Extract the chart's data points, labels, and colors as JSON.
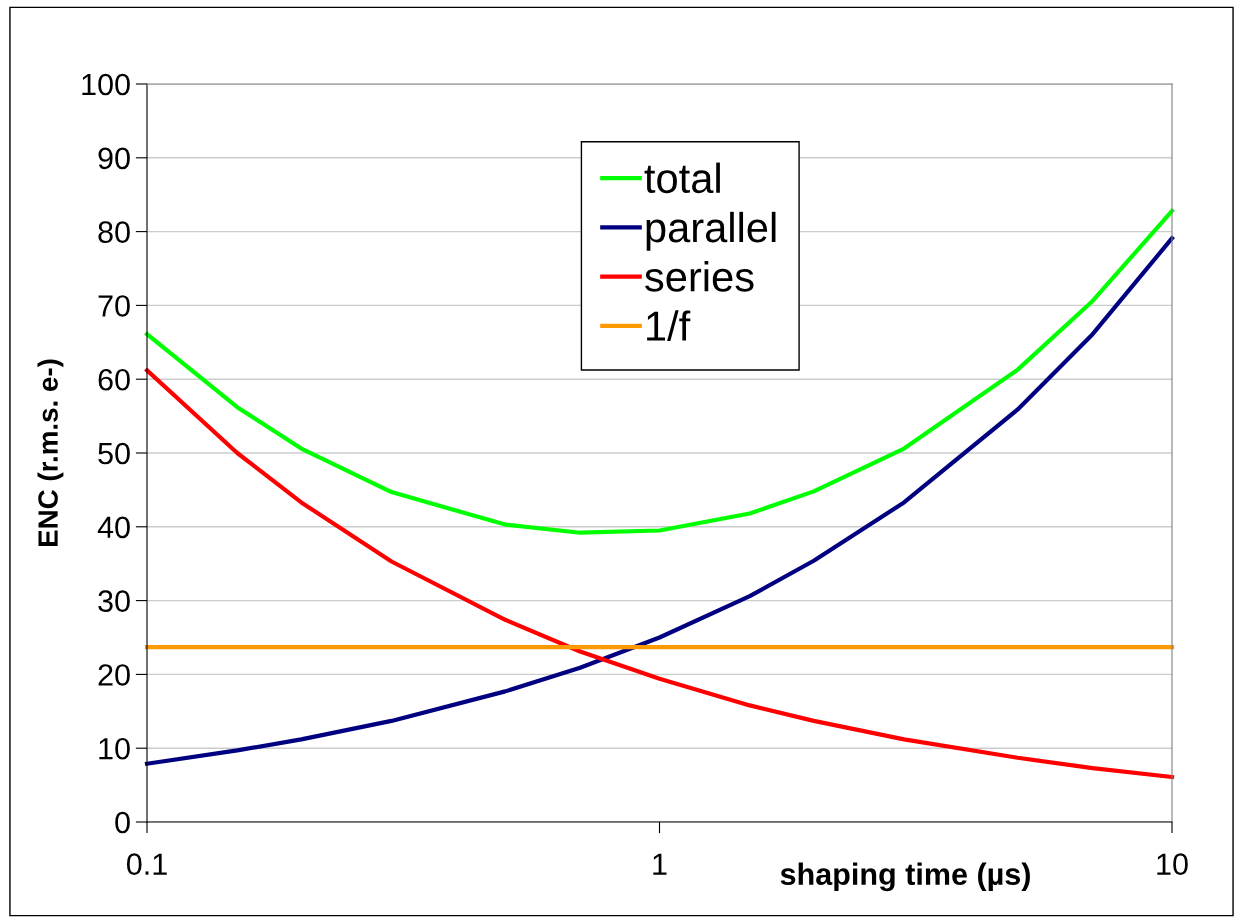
{
  "chart_data": {
    "type": "line",
    "xlabel": "shaping time (µs)",
    "ylabel": "ENC (r.m.s. e-)",
    "log": "x",
    "xlim": [
      0.1,
      10
    ],
    "xticks": [
      0.1,
      1,
      10
    ],
    "ylim": [
      0,
      100
    ],
    "yticks": [
      0,
      10,
      20,
      30,
      40,
      50,
      60,
      70,
      80,
      90,
      100
    ],
    "grid": "y",
    "legend": "top",
    "marker": "none",
    "line_style": "solid",
    "x": [
      0.1,
      0.15,
      0.2,
      0.3,
      0.5,
      0.7,
      1,
      1.5,
      2,
      3,
      5,
      7,
      10
    ],
    "series": [
      {
        "name": "total",
        "color": "#00ff00",
        "values": [
          66.1,
          56.2,
          50.6,
          44.7,
          40.3,
          39.2,
          39.5,
          41.8,
          44.8,
          50.6,
          61.3,
          70.6,
          82.8
        ]
      },
      {
        "name": "parallel",
        "color": "#000080",
        "values": [
          7.9,
          9.7,
          11.2,
          13.7,
          17.7,
          20.9,
          25.0,
          30.6,
          35.4,
          43.3,
          55.9,
          66.1,
          79.1
        ]
      },
      {
        "name": "series",
        "color": "#ff0000",
        "values": [
          61.2,
          50.0,
          43.3,
          35.3,
          27.4,
          23.1,
          19.4,
          15.8,
          13.7,
          11.2,
          8.7,
          7.3,
          6.1
        ]
      },
      {
        "name": "1/f",
        "color": "#ff9900",
        "x": [
          0.1,
          10
        ],
        "values": [
          23.7,
          23.7
        ]
      }
    ]
  }
}
